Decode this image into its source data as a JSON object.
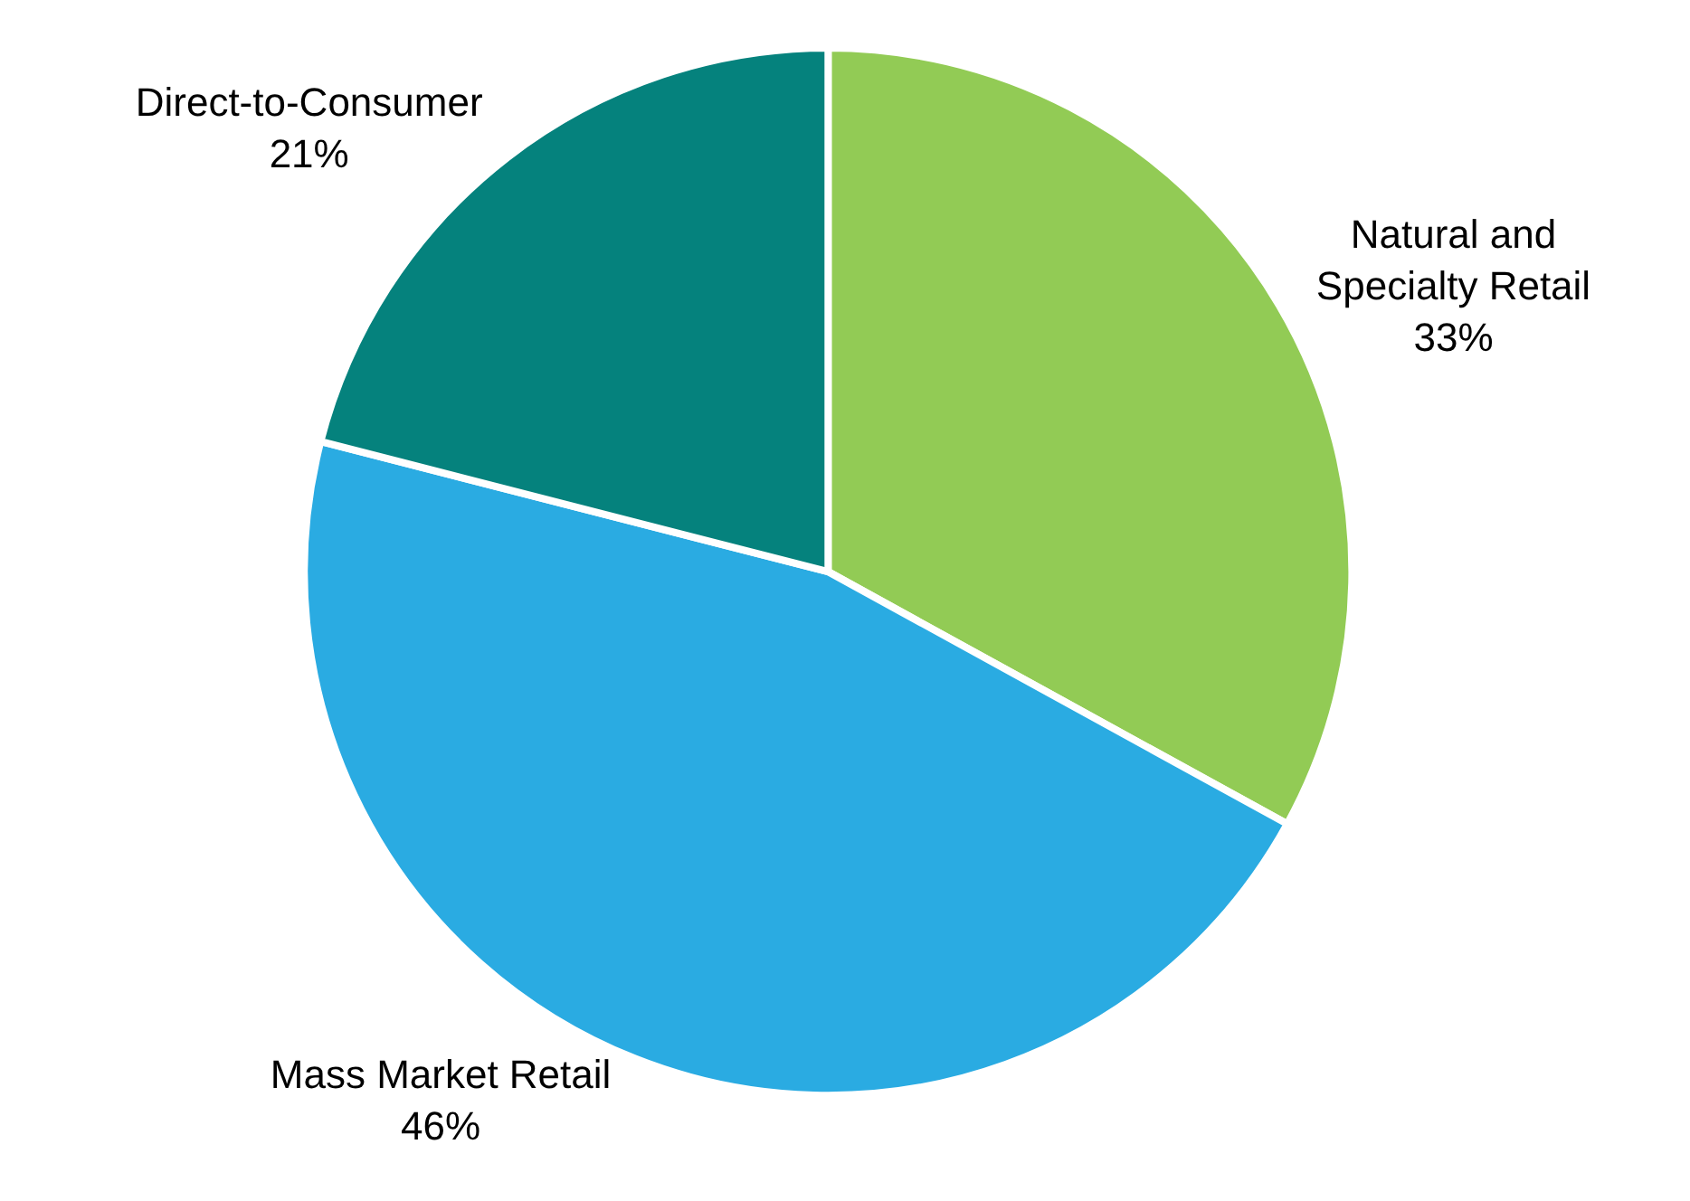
{
  "chart_data": {
    "type": "pie",
    "categories": [
      "Natural and Specialty Retail",
      "Mass Market Retail",
      "Direct-to-Consumer"
    ],
    "values": [
      33,
      46,
      21
    ],
    "colors": [
      "#92cb55",
      "#2aabe2",
      "#05827d"
    ],
    "value_labels": [
      "33%",
      "46%",
      "21%"
    ],
    "legend": false
  }
}
